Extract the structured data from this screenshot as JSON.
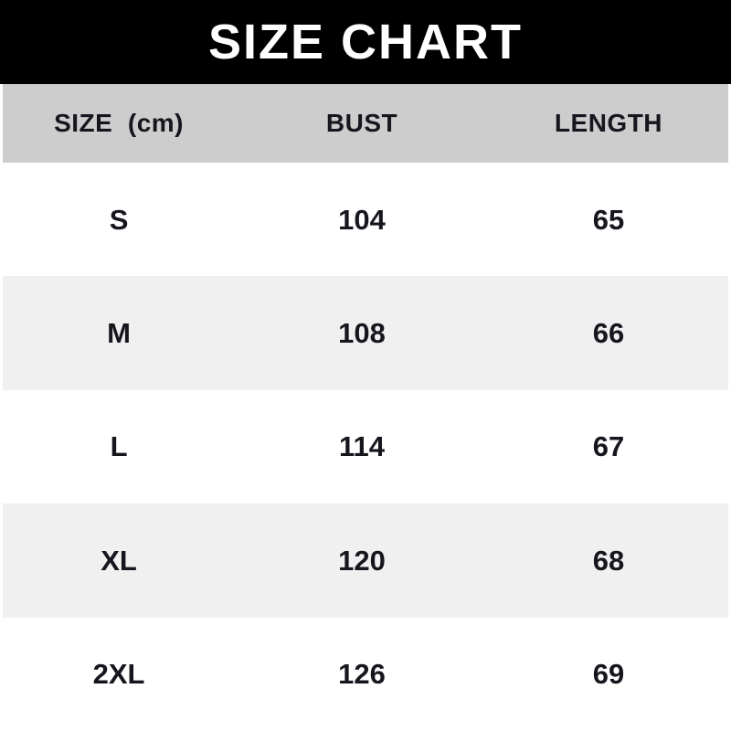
{
  "title": "SIZE CHART",
  "chart_data": {
    "type": "table",
    "title": "SIZE CHART",
    "unit": "cm",
    "columns": [
      "SIZE  (cm)",
      "BUST",
      "LENGTH"
    ],
    "rows": [
      [
        "S",
        104,
        65
      ],
      [
        "M",
        108,
        66
      ],
      [
        "L",
        114,
        67
      ],
      [
        "XL",
        120,
        68
      ],
      [
        "2XL",
        126,
        69
      ]
    ]
  },
  "colors": {
    "banner_bg": "#000000",
    "banner_text": "#ffffff",
    "header_bg": "#cdcdcd",
    "row_bg": "#ffffff",
    "row_alt_bg": "#f0f0f0",
    "text": "#16161e"
  }
}
